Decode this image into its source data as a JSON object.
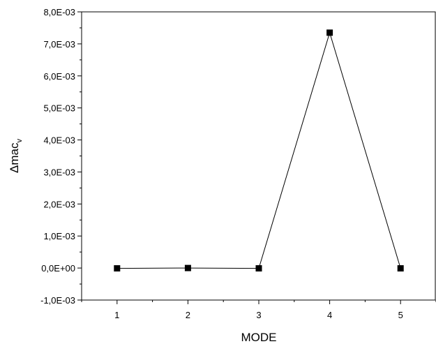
{
  "chart_data": {
    "type": "line",
    "title": "",
    "xlabel": "MODE",
    "ylabel": "Δmac",
    "ylabel_subscript": "v",
    "x": [
      1,
      2,
      3,
      4,
      5
    ],
    "series": [
      {
        "values": [
          -1e-05,
          0.0,
          -1e-05,
          0.00735,
          -1e-05
        ]
      }
    ],
    "xlim": [
      0.5,
      5.5
    ],
    "ylim": [
      -0.001,
      0.008
    ],
    "xticks": [
      1,
      2,
      3,
      4,
      5
    ],
    "xtick_labels": [
      "1",
      "2",
      "3",
      "4",
      "5"
    ],
    "yticks": [
      -0.001,
      0.0,
      0.001,
      0.002,
      0.003,
      0.004,
      0.005,
      0.006,
      0.007,
      0.008
    ],
    "ytick_labels": [
      "-1,0E-03",
      "0,0E+00",
      "1,0E-03",
      "2,0E-03",
      "3,0E-03",
      "4,0E-03",
      "5,0E-03",
      "6,0E-03",
      "7,0E-03",
      "8,0E-03"
    ],
    "grid": false,
    "legend": "none",
    "marker": "square",
    "line_color": "#000000",
    "marker_color": "#000000"
  }
}
